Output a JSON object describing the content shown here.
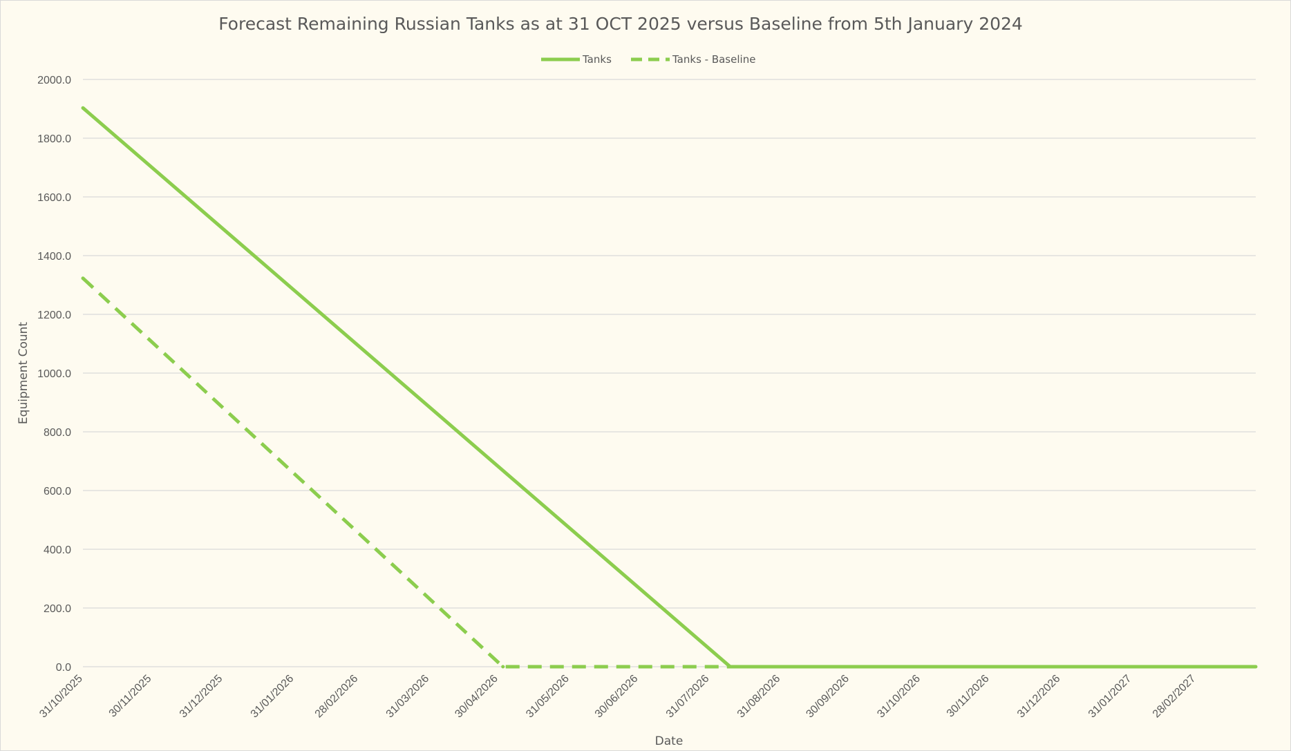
{
  "chart_data": {
    "type": "line",
    "title": "Forecast Remaining Russian Tanks as at 31 OCT 2025 versus Baseline from 5th January 2024",
    "xlabel": "Date",
    "ylabel": "Equipment Count",
    "ylim": [
      0,
      2000
    ],
    "y_ticks": [
      "0.0",
      "200.0",
      "400.0",
      "600.0",
      "800.0",
      "1000.0",
      "1200.0",
      "1400.0",
      "1600.0",
      "1800.0",
      "2000.0"
    ],
    "x_range": [
      "2025-10-31",
      "2027-03-26"
    ],
    "x_ticks": [
      {
        "date": "2025-10-31",
        "label": "31/10/2025"
      },
      {
        "date": "2025-11-30",
        "label": "30/11/2025"
      },
      {
        "date": "2025-12-31",
        "label": "31/12/2025"
      },
      {
        "date": "2026-01-31",
        "label": "31/01/2026"
      },
      {
        "date": "2026-02-28",
        "label": "28/02/2026"
      },
      {
        "date": "2026-03-31",
        "label": "31/03/2026"
      },
      {
        "date": "2026-04-30",
        "label": "30/04/2026"
      },
      {
        "date": "2026-05-31",
        "label": "31/05/2026"
      },
      {
        "date": "2026-06-30",
        "label": "30/06/2026"
      },
      {
        "date": "2026-07-31",
        "label": "31/07/2026"
      },
      {
        "date": "2026-08-31",
        "label": "31/08/2026"
      },
      {
        "date": "2026-09-30",
        "label": "30/09/2026"
      },
      {
        "date": "2026-10-31",
        "label": "31/10/2026"
      },
      {
        "date": "2026-11-30",
        "label": "30/11/2026"
      },
      {
        "date": "2026-12-31",
        "label": "31/12/2026"
      },
      {
        "date": "2027-01-31",
        "label": "31/01/2027"
      },
      {
        "date": "2027-02-28",
        "label": "28/02/2027"
      }
    ],
    "grid": true,
    "legend_position": "top-center",
    "series": [
      {
        "name": "Tanks",
        "style": "solid",
        "color": "#8ccd4e",
        "points": [
          {
            "x": "2025-10-31",
            "y": 1903
          },
          {
            "x": "2026-08-09",
            "y": 0
          },
          {
            "x": "2027-03-26",
            "y": 0
          }
        ]
      },
      {
        "name": "Tanks - Baseline",
        "style": "dashed",
        "color": "#8ccd4e",
        "points": [
          {
            "x": "2025-10-31",
            "y": 1323
          },
          {
            "x": "2026-05-02",
            "y": 0
          },
          {
            "x": "2026-08-09",
            "y": 0
          }
        ]
      }
    ]
  }
}
